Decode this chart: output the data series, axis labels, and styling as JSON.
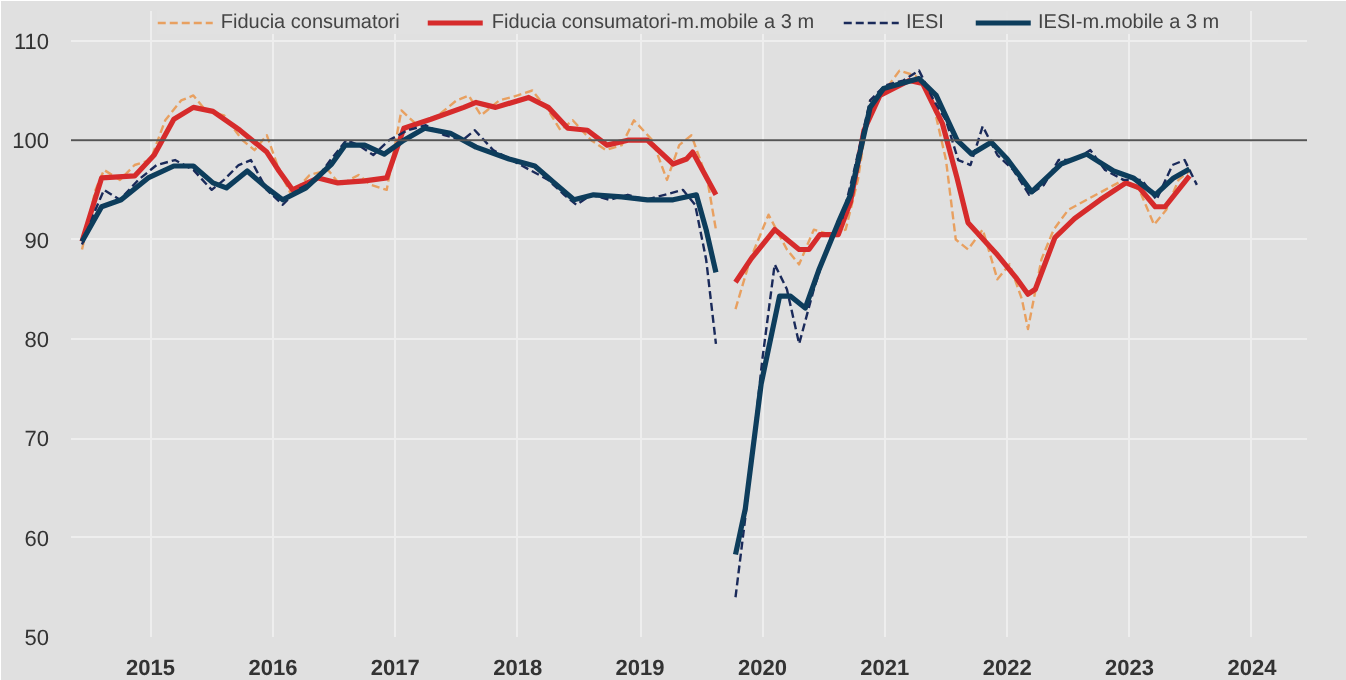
{
  "chart_data": {
    "type": "line",
    "legend": "top",
    "grid": true,
    "xlim": [
      2014.85,
      2024.95
    ],
    "ylim": [
      50,
      113
    ],
    "xticks": [
      {
        "value": 2015.5,
        "label": "2015"
      },
      {
        "value": 2016.5,
        "label": "2016"
      },
      {
        "value": 2017.5,
        "label": "2017"
      },
      {
        "value": 2018.5,
        "label": "2018"
      },
      {
        "value": 2019.5,
        "label": "2019"
      },
      {
        "value": 2020.5,
        "label": "2020"
      },
      {
        "value": 2021.5,
        "label": "2021"
      },
      {
        "value": 2022.5,
        "label": "2022"
      },
      {
        "value": 2023.5,
        "label": "2023"
      },
      {
        "value": 2024.5,
        "label": "2024"
      }
    ],
    "yticks": [
      50,
      60,
      70,
      80,
      90,
      100,
      110
    ],
    "ref_lines": [
      {
        "axis": "y",
        "value": 100,
        "color": "#555555"
      }
    ],
    "series": [
      {
        "name": "Fiducia consumatori",
        "color": "#e8a060",
        "line_style": "dashed",
        "x": [
          2014.94,
          2015.05,
          2015.12,
          2015.25,
          2015.37,
          2015.5,
          2015.62,
          2015.75,
          2015.85,
          2015.95,
          2016.1,
          2016.25,
          2016.35,
          2016.45,
          2016.55,
          2016.65,
          2016.8,
          2016.95,
          2017.05,
          2017.2,
          2017.3,
          2017.43,
          2017.55,
          2017.68,
          2017.85,
          2018.0,
          2018.1,
          2018.2,
          2018.35,
          2018.5,
          2018.62,
          2018.75,
          2018.85,
          2018.95,
          2019.1,
          2019.22,
          2019.35,
          2019.45,
          2019.6,
          2019.72,
          2019.82,
          2019.92,
          2020.05,
          2020.12,
          2020.2,
          2020.28,
          2020.4,
          2020.55,
          2020.7,
          2020.8,
          2020.92,
          2021.05,
          2021.18,
          2021.28,
          2021.38,
          2021.5,
          2021.62,
          2021.75,
          2021.88,
          2022.0,
          2022.08,
          2022.18,
          2022.3,
          2022.42,
          2022.52,
          2022.62,
          2022.67,
          2022.78,
          2022.88,
          2023.0,
          2023.15,
          2023.3,
          2023.45,
          2023.58,
          2023.7,
          2023.8,
          2023.9,
          2024.0
        ],
        "values": [
          89,
          95,
          97,
          96,
          97.5,
          98,
          102,
          104,
          104.5,
          103,
          102.5,
          100,
          99,
          100.5,
          97,
          94.5,
          96.5,
          97,
          95.5,
          96.5,
          95.5,
          95,
          103,
          101.5,
          102.5,
          104,
          104.5,
          102.5,
          104,
          104.5,
          105,
          103,
          101,
          102,
          100,
          99,
          99.5,
          102,
          100,
          96,
          99.5,
          100.5,
          96,
          91,
          null,
          83,
          88,
          92.5,
          89,
          87.5,
          91,
          90.5,
          91,
          96,
          104,
          105,
          107,
          106.5,
          104.5,
          98,
          90,
          89,
          91,
          86,
          87.5,
          84,
          81,
          88,
          91,
          93,
          94,
          95,
          96,
          95,
          91.5,
          93,
          96,
          97
        ]
      },
      {
        "name": "Fiducia consumatori-m.mobile a 3 m",
        "color": "#d62b2b",
        "line_style": "solid",
        "x": [
          2014.94,
          2015.1,
          2015.37,
          2015.53,
          2015.69,
          2015.85,
          2016.01,
          2016.23,
          2016.45,
          2016.55,
          2016.66,
          2016.87,
          2017.03,
          2017.25,
          2017.43,
          2017.57,
          2017.79,
          2018.06,
          2018.16,
          2018.32,
          2018.59,
          2018.75,
          2018.91,
          2019.07,
          2019.23,
          2019.4,
          2019.56,
          2019.77,
          2019.88,
          2019.93,
          2020.12,
          2020.2,
          2020.28,
          2020.41,
          2020.6,
          2020.8,
          2020.88,
          2020.97,
          2021.12,
          2021.22,
          2021.33,
          2021.46,
          2021.7,
          2021.81,
          2021.97,
          2022.09,
          2022.18,
          2022.41,
          2022.57,
          2022.67,
          2022.73,
          2022.89,
          2023.05,
          2023.26,
          2023.47,
          2023.58,
          2023.71,
          2023.79,
          2023.99
        ],
        "values": [
          89.8,
          96.2,
          96.4,
          98.5,
          102.1,
          103.3,
          102.9,
          101,
          98.8,
          96.9,
          95,
          96.2,
          95.7,
          95.9,
          96.2,
          101.2,
          102.1,
          103.3,
          103.8,
          103.3,
          104.3,
          103.3,
          101.2,
          101,
          99.5,
          100,
          100,
          97.6,
          98.1,
          98.8,
          94.5,
          null,
          85.7,
          88.1,
          91,
          89,
          89,
          90.5,
          90.5,
          93.8,
          101,
          104.5,
          106,
          105.7,
          101.7,
          96.2,
          91.7,
          88.6,
          86.2,
          84.5,
          85,
          90.2,
          92.1,
          94,
          95.7,
          95.2,
          93.3,
          93.3,
          96.4
        ]
      },
      {
        "name": "IESI",
        "color": "#1a2a5a",
        "line_style": "dashed",
        "x": [
          2014.94,
          2015.05,
          2015.12,
          2015.25,
          2015.4,
          2015.55,
          2015.7,
          2015.85,
          2016.0,
          2016.1,
          2016.22,
          2016.32,
          2016.45,
          2016.58,
          2016.7,
          2016.85,
          2016.97,
          2017.1,
          2017.2,
          2017.32,
          2017.45,
          2017.6,
          2017.75,
          2017.9,
          2018.05,
          2018.15,
          2018.3,
          2018.45,
          2018.6,
          2018.75,
          2018.88,
          2018.98,
          2019.1,
          2019.25,
          2019.4,
          2019.55,
          2019.7,
          2019.85,
          2019.95,
          2020.04,
          2020.12,
          2020.2,
          2020.28,
          2020.36,
          2020.5,
          2020.6,
          2020.7,
          2020.8,
          2020.92,
          2021.05,
          2021.15,
          2021.25,
          2021.38,
          2021.5,
          2021.65,
          2021.78,
          2021.9,
          2022.0,
          2022.1,
          2022.2,
          2022.3,
          2022.42,
          2022.55,
          2022.68,
          2022.8,
          2022.92,
          2023.05,
          2023.18,
          2023.3,
          2023.45,
          2023.6,
          2023.72,
          2023.85,
          2023.95,
          2024.05
        ],
        "values": [
          89.5,
          93,
          95,
          94,
          96,
          97.5,
          98,
          97,
          95,
          96,
          97.5,
          98,
          95,
          93.5,
          95,
          96,
          98,
          100,
          99.5,
          98.5,
          100,
          101,
          101.5,
          100.5,
          100,
          101,
          99,
          98,
          97,
          96,
          94.5,
          93.5,
          94.5,
          94,
          94.5,
          94,
          94.5,
          95,
          93.5,
          88,
          79.5,
          null,
          54,
          62,
          78,
          87.5,
          85,
          79.5,
          85,
          90,
          92,
          97,
          104,
          105.5,
          106,
          107,
          104,
          102,
          98,
          97.5,
          101.4,
          98.5,
          97,
          94.5,
          95.5,
          98,
          98,
          99,
          97,
          96,
          96,
          94,
          97.5,
          98,
          95.5
        ]
      },
      {
        "name": "IESI-m.mobile a 3 m",
        "color": "#0d3d5c",
        "line_style": "solid",
        "x": [
          2014.94,
          2015.1,
          2015.26,
          2015.48,
          2015.69,
          2015.85,
          2016.01,
          2016.12,
          2016.29,
          2016.45,
          2016.58,
          2016.77,
          2016.98,
          2017.09,
          2017.25,
          2017.41,
          2017.57,
          2017.74,
          2017.95,
          2018.16,
          2018.43,
          2018.64,
          2018.8,
          2018.96,
          2019.12,
          2019.35,
          2019.56,
          2019.77,
          2019.96,
          2020.04,
          2020.12,
          2020.2,
          2020.28,
          2020.36,
          2020.49,
          2020.64,
          2020.73,
          2020.85,
          2020.96,
          2021.12,
          2021.22,
          2021.38,
          2021.49,
          2021.78,
          2021.92,
          2022.09,
          2022.21,
          2022.37,
          2022.5,
          2022.7,
          2022.94,
          2023.15,
          2023.37,
          2023.53,
          2023.71,
          2023.86,
          2023.99
        ],
        "values": [
          89.8,
          93.3,
          94,
          96.2,
          97.4,
          97.4,
          95.7,
          95.2,
          96.9,
          95.2,
          94,
          95.2,
          97.6,
          99.5,
          99.5,
          98.6,
          100,
          101.2,
          100.7,
          99.3,
          98.1,
          97.4,
          95.7,
          94,
          94.5,
          94.3,
          94,
          94,
          94.5,
          91,
          86.7,
          null,
          58.3,
          62.9,
          75.5,
          84.3,
          84.3,
          83.1,
          86.9,
          91.7,
          94.5,
          103.3,
          105.2,
          106.2,
          104.5,
          100,
          98.6,
          99.8,
          98.1,
          94.8,
          97.6,
          98.6,
          96.9,
          96.2,
          94.5,
          96.2,
          97.1
        ]
      }
    ]
  }
}
